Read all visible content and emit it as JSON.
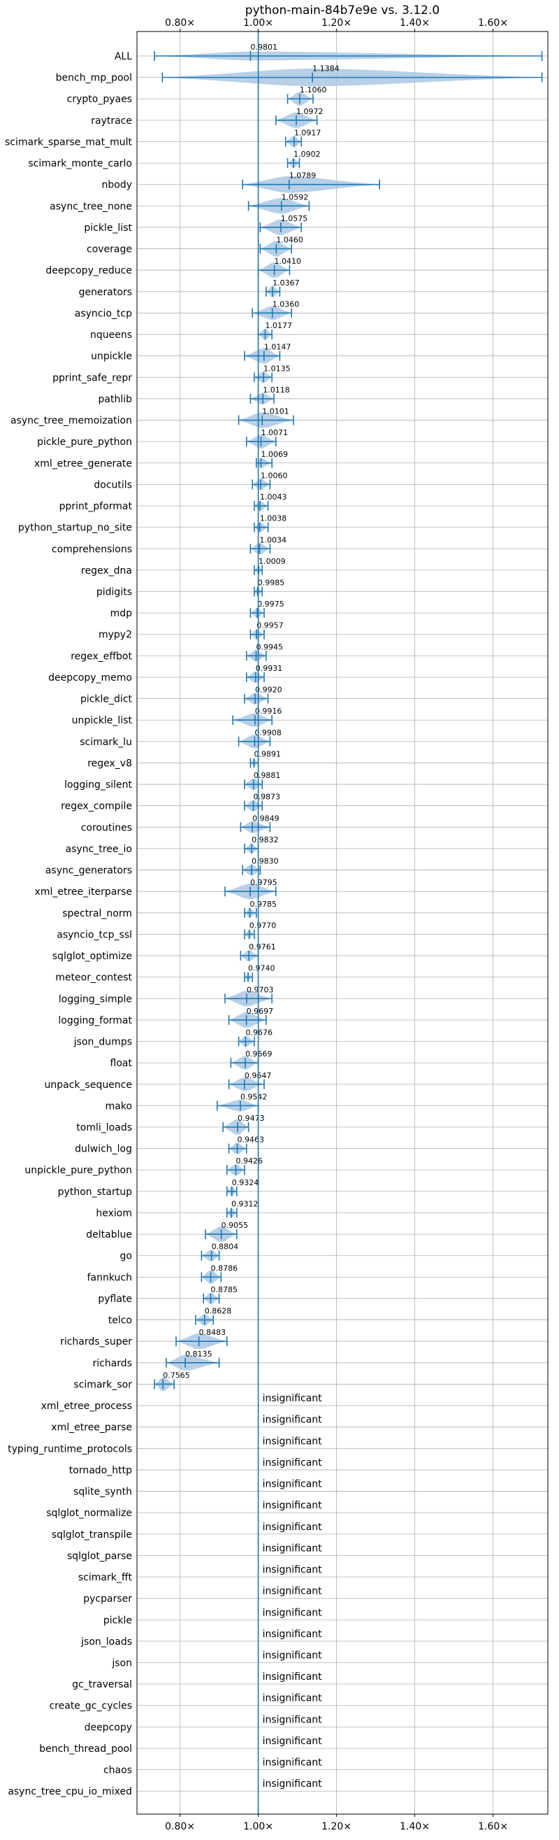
{
  "chart_data": {
    "type": "violin",
    "title": "python-main-84b7e9e vs. 3.12.0",
    "xlim": [
      0.69,
      1.74
    ],
    "xticks": [
      0.8,
      1.0,
      1.2,
      1.4,
      1.6
    ],
    "xtick_labels": [
      "0.80×",
      "1.00×",
      "1.20×",
      "1.40×",
      "1.60×"
    ],
    "reference_line": 1.0,
    "grid": true,
    "colors": {
      "violin": "#aac8e3",
      "line": "#1f77b4"
    },
    "insignificant_label": "insignificant",
    "rows": [
      {
        "name": "ALL",
        "value": 0.9801,
        "label": "0.9801",
        "min": 0.735,
        "max": 1.725,
        "width": 0.45
      },
      {
        "name": "bench_mp_pool",
        "value": 1.1384,
        "label": "1.1384",
        "min": 0.755,
        "max": 1.725,
        "width": 0.9
      },
      {
        "name": "crypto_pyaes",
        "value": 1.106,
        "label": "1.1060",
        "min": 1.075,
        "max": 1.14,
        "width": 0.7
      },
      {
        "name": "raytrace",
        "value": 1.0972,
        "label": "1.0972",
        "min": 1.045,
        "max": 1.15,
        "width": 0.8
      },
      {
        "name": "scimark_sparse_mat_mult",
        "value": 1.0917,
        "label": "1.0917",
        "min": 1.07,
        "max": 1.11,
        "width": 0.6
      },
      {
        "name": "scimark_monte_carlo",
        "value": 1.0902,
        "label": "1.0902",
        "min": 1.075,
        "max": 1.105,
        "width": 0.5
      },
      {
        "name": "nbody",
        "value": 1.0789,
        "label": "1.0789",
        "min": 0.96,
        "max": 1.31,
        "width": 0.85
      },
      {
        "name": "async_tree_none",
        "value": 1.0592,
        "label": "1.0592",
        "min": 0.975,
        "max": 1.13,
        "width": 0.8
      },
      {
        "name": "pickle_list",
        "value": 1.0575,
        "label": "1.0575",
        "min": 1.005,
        "max": 1.11,
        "width": 0.8
      },
      {
        "name": "coverage",
        "value": 1.046,
        "label": "1.0460",
        "min": 1.005,
        "max": 1.085,
        "width": 0.8
      },
      {
        "name": "deepcopy_reduce",
        "value": 1.041,
        "label": "1.0410",
        "min": 1.0,
        "max": 1.08,
        "width": 0.8
      },
      {
        "name": "generators",
        "value": 1.0367,
        "label": "1.0367",
        "min": 1.02,
        "max": 1.055,
        "width": 0.6
      },
      {
        "name": "asyncio_tcp",
        "value": 1.036,
        "label": "1.0360",
        "min": 0.985,
        "max": 1.085,
        "width": 0.7
      },
      {
        "name": "nqueens",
        "value": 1.0177,
        "label": "1.0177",
        "min": 1.0,
        "max": 1.035,
        "width": 0.6
      },
      {
        "name": "unpickle",
        "value": 1.0147,
        "label": "1.0147",
        "min": 0.965,
        "max": 1.055,
        "width": 0.8
      },
      {
        "name": "pprint_safe_repr",
        "value": 1.0135,
        "label": "1.0135",
        "min": 0.99,
        "max": 1.035,
        "width": 0.6
      },
      {
        "name": "pathlib",
        "value": 1.0118,
        "label": "1.0118",
        "min": 0.98,
        "max": 1.04,
        "width": 0.6
      },
      {
        "name": "async_tree_memoization",
        "value": 1.0101,
        "label": "1.0101",
        "min": 0.95,
        "max": 1.09,
        "width": 0.8
      },
      {
        "name": "pickle_pure_python",
        "value": 1.0071,
        "label": "1.0071",
        "min": 0.97,
        "max": 1.045,
        "width": 0.7
      },
      {
        "name": "xml_etree_generate",
        "value": 1.0069,
        "label": "1.0069",
        "min": 0.995,
        "max": 1.035,
        "width": 0.5
      },
      {
        "name": "docutils",
        "value": 1.006,
        "label": "1.0060",
        "min": 0.985,
        "max": 1.03,
        "width": 0.6
      },
      {
        "name": "pprint_pformat",
        "value": 1.0043,
        "label": "1.0043",
        "min": 0.99,
        "max": 1.025,
        "width": 0.5
      },
      {
        "name": "python_startup_no_site",
        "value": 1.0038,
        "label": "1.0038",
        "min": 0.99,
        "max": 1.025,
        "width": 0.5
      },
      {
        "name": "comprehensions",
        "value": 1.0034,
        "label": "1.0034",
        "min": 0.98,
        "max": 1.03,
        "width": 0.6
      },
      {
        "name": "regex_dna",
        "value": 1.0009,
        "label": "1.0009",
        "min": 0.99,
        "max": 1.01,
        "width": 0.4
      },
      {
        "name": "pidigits",
        "value": 0.9985,
        "label": "0.9985",
        "min": 0.99,
        "max": 1.01,
        "width": 0.4
      },
      {
        "name": "mdp",
        "value": 0.9975,
        "label": "0.9975",
        "min": 0.98,
        "max": 1.015,
        "width": 0.5
      },
      {
        "name": "mypy2",
        "value": 0.9957,
        "label": "0.9957",
        "min": 0.98,
        "max": 1.015,
        "width": 0.5
      },
      {
        "name": "regex_effbot",
        "value": 0.9945,
        "label": "0.9945",
        "min": 0.97,
        "max": 1.02,
        "width": 0.6
      },
      {
        "name": "deepcopy_memo",
        "value": 0.9931,
        "label": "0.9931",
        "min": 0.97,
        "max": 1.015,
        "width": 0.6
      },
      {
        "name": "pickle_dict",
        "value": 0.992,
        "label": "0.9920",
        "min": 0.965,
        "max": 1.025,
        "width": 0.6
      },
      {
        "name": "unpickle_list",
        "value": 0.9916,
        "label": "0.9916",
        "min": 0.935,
        "max": 1.035,
        "width": 0.7
      },
      {
        "name": "scimark_lu",
        "value": 0.9908,
        "label": "0.9908",
        "min": 0.95,
        "max": 1.03,
        "width": 0.7
      },
      {
        "name": "regex_v8",
        "value": 0.9891,
        "label": "0.9891",
        "min": 0.98,
        "max": 1.0,
        "width": 0.4
      },
      {
        "name": "logging_silent",
        "value": 0.9881,
        "label": "0.9881",
        "min": 0.965,
        "max": 1.01,
        "width": 0.6
      },
      {
        "name": "regex_compile",
        "value": 0.9873,
        "label": "0.9873",
        "min": 0.965,
        "max": 1.01,
        "width": 0.6
      },
      {
        "name": "coroutines",
        "value": 0.9849,
        "label": "0.9849",
        "min": 0.955,
        "max": 1.03,
        "width": 0.6
      },
      {
        "name": "async_tree_io",
        "value": 0.9832,
        "label": "0.9832",
        "min": 0.965,
        "max": 1.0,
        "width": 0.5
      },
      {
        "name": "async_generators",
        "value": 0.983,
        "label": "0.9830",
        "min": 0.96,
        "max": 1.005,
        "width": 0.6
      },
      {
        "name": "xml_etree_iterparse",
        "value": 0.9795,
        "label": "0.9795",
        "min": 0.915,
        "max": 1.045,
        "width": 0.8
      },
      {
        "name": "spectral_norm",
        "value": 0.9785,
        "label": "0.9785",
        "min": 0.965,
        "max": 0.995,
        "width": 0.5
      },
      {
        "name": "asyncio_tcp_ssl",
        "value": 0.977,
        "label": "0.9770",
        "min": 0.965,
        "max": 0.99,
        "width": 0.4
      },
      {
        "name": "sqlglot_optimize",
        "value": 0.9761,
        "label": "0.9761",
        "min": 0.955,
        "max": 1.0,
        "width": 0.6
      },
      {
        "name": "meteor_contest",
        "value": 0.974,
        "label": "0.9740",
        "min": 0.965,
        "max": 0.985,
        "width": 0.4
      },
      {
        "name": "logging_simple",
        "value": 0.9703,
        "label": "0.9703",
        "min": 0.915,
        "max": 1.035,
        "width": 0.8
      },
      {
        "name": "logging_format",
        "value": 0.9697,
        "label": "0.9697",
        "min": 0.925,
        "max": 1.02,
        "width": 0.8
      },
      {
        "name": "json_dumps",
        "value": 0.9676,
        "label": "0.9676",
        "min": 0.95,
        "max": 0.99,
        "width": 0.6
      },
      {
        "name": "float",
        "value": 0.9669,
        "label": "0.9669",
        "min": 0.93,
        "max": 1.0,
        "width": 0.7
      },
      {
        "name": "unpack_sequence",
        "value": 0.9647,
        "label": "0.9647",
        "min": 0.925,
        "max": 1.015,
        "width": 0.7
      },
      {
        "name": "mako",
        "value": 0.9542,
        "label": "0.9542",
        "min": 0.895,
        "max": 1.0,
        "width": 0.6
      },
      {
        "name": "tomli_loads",
        "value": 0.9473,
        "label": "0.9473",
        "min": 0.91,
        "max": 0.975,
        "width": 0.8
      },
      {
        "name": "dulwich_log",
        "value": 0.9463,
        "label": "0.9463",
        "min": 0.925,
        "max": 0.97,
        "width": 0.6
      },
      {
        "name": "unpickle_pure_python",
        "value": 0.9426,
        "label": "0.9426",
        "min": 0.92,
        "max": 0.965,
        "width": 0.6
      },
      {
        "name": "python_startup",
        "value": 0.9324,
        "label": "0.9324",
        "min": 0.92,
        "max": 0.945,
        "width": 0.5
      },
      {
        "name": "hexiom",
        "value": 0.9312,
        "label": "0.9312",
        "min": 0.92,
        "max": 0.945,
        "width": 0.5
      },
      {
        "name": "deltablue",
        "value": 0.9055,
        "label": "0.9055",
        "min": 0.865,
        "max": 0.945,
        "width": 0.8
      },
      {
        "name": "go",
        "value": 0.8804,
        "label": "0.8804",
        "min": 0.855,
        "max": 0.9,
        "width": 0.6
      },
      {
        "name": "fannkuch",
        "value": 0.8786,
        "label": "0.8786",
        "min": 0.855,
        "max": 0.905,
        "width": 0.7
      },
      {
        "name": "pyflate",
        "value": 0.8785,
        "label": "0.8785",
        "min": 0.86,
        "max": 0.9,
        "width": 0.6
      },
      {
        "name": "telco",
        "value": 0.8628,
        "label": "0.8628",
        "min": 0.84,
        "max": 0.885,
        "width": 0.6
      },
      {
        "name": "richards_super",
        "value": 0.8483,
        "label": "0.8483",
        "min": 0.79,
        "max": 0.92,
        "width": 0.8
      },
      {
        "name": "richards",
        "value": 0.8135,
        "label": "0.8135",
        "min": 0.765,
        "max": 0.9,
        "width": 0.8
      },
      {
        "name": "scimark_sor",
        "value": 0.7565,
        "label": "0.7565",
        "min": 0.735,
        "max": 0.785,
        "width": 0.7
      }
    ],
    "insignificant_rows": [
      "xml_etree_process",
      "xml_etree_parse",
      "typing_runtime_protocols",
      "tornado_http",
      "sqlite_synth",
      "sqlglot_normalize",
      "sqlglot_transpile",
      "sqlglot_parse",
      "scimark_fft",
      "pycparser",
      "pickle",
      "json_loads",
      "json",
      "gc_traversal",
      "create_gc_cycles",
      "deepcopy",
      "bench_thread_pool",
      "chaos",
      "async_tree_cpu_io_mixed"
    ]
  }
}
